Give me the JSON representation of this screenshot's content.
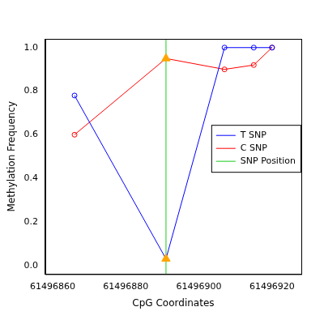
{
  "chart_data": {
    "type": "line",
    "x_label": "CpG Coordinates",
    "y_label": "Methylation Frequency",
    "xlim": [
      61496858,
      61496928
    ],
    "xticks": [
      61496860,
      61496880,
      61496900,
      61496920
    ],
    "ylim": [
      -0.04,
      1.04
    ],
    "yticks": [
      {
        "value": 0,
        "label": "0.0"
      },
      {
        "value": 0.2,
        "label": "0.2"
      },
      {
        "value": 0.4,
        "label": "0.4"
      },
      {
        "value": 0.6,
        "label": "0.6"
      },
      {
        "value": 0.8,
        "label": "0.8"
      },
      {
        "value": 1,
        "label": "1.0"
      }
    ],
    "grid": false,
    "legend": "right",
    "x": [
      61496866,
      61496891,
      61496907,
      61496915,
      61496920
    ],
    "series": [
      {
        "name": "T SNP",
        "color": "#0000ff",
        "marker": "circle",
        "values": [
          0.78,
          0.03,
          1.0,
          1.0,
          1.0
        ]
      },
      {
        "name": "C SNP",
        "color": "#ff0000",
        "marker": "circle",
        "values": [
          0.6,
          0.95,
          0.9,
          0.92,
          1.0
        ]
      }
    ],
    "snp": {
      "name": "SNP Position",
      "x": 61496891,
      "color": "#66dd66",
      "marker": "triangle"
    }
  }
}
